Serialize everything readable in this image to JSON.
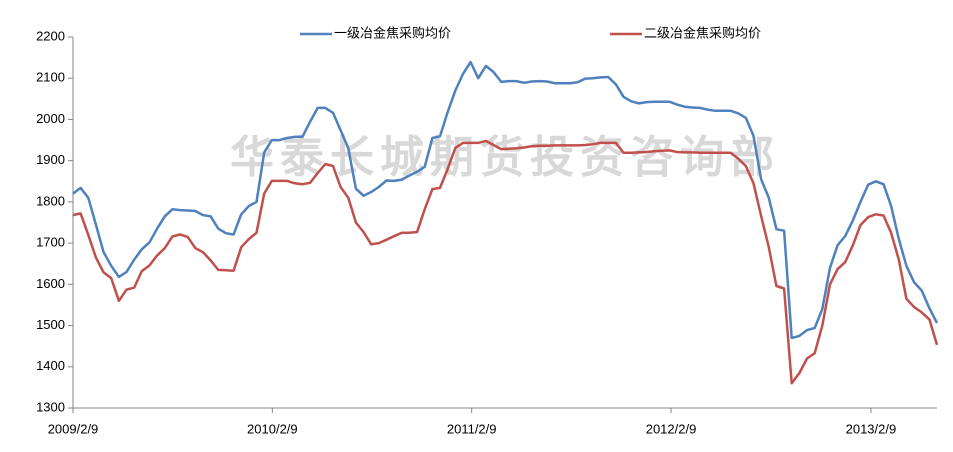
{
  "chart_data": {
    "type": "line",
    "watermark": "华泰长城期货投资咨询部",
    "x": [
      "2009/2/9",
      "2009/2/23",
      "2009/3/9",
      "2009/3/23",
      "2009/4/6",
      "2009/4/20",
      "2009/5/4",
      "2009/5/18",
      "2009/6/1",
      "2009/6/15",
      "2009/6/29",
      "2009/7/13",
      "2009/7/27",
      "2009/8/10",
      "2009/8/24",
      "2009/9/7",
      "2009/9/21",
      "2009/10/5",
      "2009/10/19",
      "2009/11/2",
      "2009/11/16",
      "2009/11/30",
      "2009/12/14",
      "2009/12/28",
      "2010/1/11",
      "2010/1/25",
      "2010/2/8",
      "2010/2/22",
      "2010/3/8",
      "2010/3/22",
      "2010/4/5",
      "2010/4/19",
      "2010/5/3",
      "2010/5/17",
      "2010/5/31",
      "2010/6/14",
      "2010/6/28",
      "2010/7/12",
      "2010/7/26",
      "2010/8/9",
      "2010/8/23",
      "2010/9/6",
      "2010/9/20",
      "2010/10/4",
      "2010/10/18",
      "2010/11/1",
      "2010/11/15",
      "2010/11/29",
      "2010/12/13",
      "2010/12/27",
      "2011/1/10",
      "2011/1/24",
      "2011/2/7",
      "2011/2/21",
      "2011/3/7",
      "2011/3/21",
      "2011/4/4",
      "2011/4/18",
      "2011/5/2",
      "2011/5/16",
      "2011/5/30",
      "2011/6/13",
      "2011/6/27",
      "2011/7/11",
      "2011/7/25",
      "2011/8/8",
      "2011/8/22",
      "2011/9/5",
      "2011/9/19",
      "2011/10/3",
      "2011/10/17",
      "2011/10/31",
      "2011/11/14",
      "2011/11/28",
      "2011/12/12",
      "2011/12/26",
      "2012/1/9",
      "2012/1/23",
      "2012/2/6",
      "2012/2/20",
      "2012/3/5",
      "2012/3/19",
      "2012/4/2",
      "2012/4/16",
      "2012/4/30",
      "2012/5/14",
      "2012/5/28",
      "2012/6/11",
      "2012/6/25",
      "2012/7/9",
      "2012/7/23",
      "2012/8/6",
      "2012/8/20",
      "2012/9/3",
      "2012/9/17",
      "2012/10/1",
      "2012/10/15",
      "2012/10/29",
      "2012/11/12",
      "2012/11/26",
      "2012/12/10",
      "2012/12/24",
      "2013/1/7",
      "2013/1/21",
      "2013/2/4",
      "2013/2/18",
      "2013/3/4",
      "2013/3/18",
      "2013/4/1",
      "2013/4/15",
      "2013/4/29",
      "2013/5/13",
      "2013/5/27",
      "2013/6/10"
    ],
    "series": [
      {
        "name": "一级冶金焦采购均价",
        "color": "#4f81bd",
        "values": [
          1820,
          1834,
          1810,
          1745,
          1678,
          1645,
          1618,
          1630,
          1660,
          1685,
          1702,
          1735,
          1765,
          1782,
          1780,
          1779,
          1778,
          1768,
          1765,
          1735,
          1724,
          1721,
          1770,
          1790,
          1800,
          1920,
          1950,
          1950,
          1955,
          1958,
          1958,
          1994,
          2028,
          2028,
          2016,
          1974,
          1930,
          1832,
          1815,
          1824,
          1836,
          1852,
          1851,
          1854,
          1864,
          1873,
          1885,
          1955,
          1959,
          2018,
          2070,
          2110,
          2139,
          2100,
          2130,
          2115,
          2091,
          2093,
          2093,
          2089,
          2092,
          2093,
          2092,
          2088,
          2088,
          2088,
          2090,
          2099,
          2100,
          2102,
          2103,
          2085,
          2055,
          2044,
          2039,
          2042,
          2043,
          2043,
          2043,
          2036,
          2031,
          2029,
          2028,
          2024,
          2021,
          2021,
          2021,
          2015,
          2004,
          1960,
          1855,
          1810,
          1734,
          1730,
          1470,
          1475,
          1489,
          1494,
          1540,
          1640,
          1695,
          1717,
          1755,
          1800,
          1842,
          1850,
          1843,
          1790,
          1710,
          1645,
          1605,
          1585,
          1542,
          1506
        ]
      },
      {
        "name": "二级冶金焦采购均价",
        "color": "#c0504d",
        "values": [
          1768,
          1772,
          1720,
          1665,
          1629,
          1615,
          1560,
          1587,
          1592,
          1632,
          1646,
          1670,
          1688,
          1716,
          1721,
          1715,
          1688,
          1678,
          1658,
          1635,
          1634,
          1633,
          1690,
          1710,
          1725,
          1820,
          1851,
          1851,
          1851,
          1845,
          1843,
          1846,
          1870,
          1892,
          1887,
          1836,
          1810,
          1750,
          1727,
          1697,
          1700,
          1708,
          1717,
          1725,
          1725,
          1727,
          1782,
          1831,
          1834,
          1880,
          1931,
          1943,
          1943,
          1943,
          1948,
          1938,
          1928,
          1929,
          1930,
          1932,
          1935,
          1936,
          1936,
          1937,
          1937,
          1937,
          1937,
          1938,
          1940,
          1943,
          1943,
          1943,
          1919,
          1919,
          1920,
          1921,
          1923,
          1924,
          1925,
          1921,
          1920,
          1920,
          1919,
          1919,
          1919,
          1919,
          1919,
          1905,
          1887,
          1845,
          1766,
          1690,
          1596,
          1590,
          1360,
          1385,
          1420,
          1433,
          1500,
          1600,
          1637,
          1654,
          1695,
          1744,
          1763,
          1770,
          1767,
          1725,
          1660,
          1565,
          1545,
          1532,
          1515,
          1453
        ]
      }
    ],
    "xlim": [
      "2009/2/9",
      "2013/6/10"
    ],
    "xticks": [
      "2009/2/9",
      "2010/2/9",
      "2011/2/9",
      "2012/2/9",
      "2013/2/9"
    ],
    "ylim": [
      1300,
      2200
    ],
    "yticks": [
      1300,
      1400,
      1500,
      1600,
      1700,
      1800,
      1900,
      2000,
      2100,
      2200
    ],
    "grid": false,
    "legend": "top"
  }
}
